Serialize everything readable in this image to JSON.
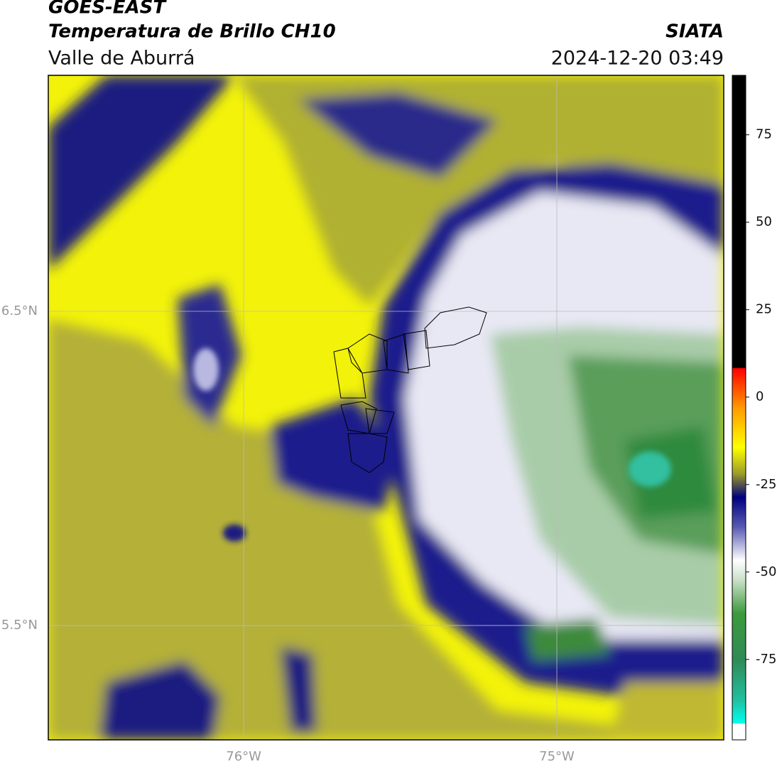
{
  "header": {
    "satellite": "GOES-EAST",
    "product": "Temperatura de Brillo CH10",
    "region": "Valle de Aburrá",
    "source": "SIATA",
    "datetime": "2024-12-20 03:49"
  },
  "map": {
    "xlim": [
      -76.624,
      -74.467
    ],
    "ylim": [
      5.136,
      7.251
    ],
    "xticks": [
      {
        "value": -76,
        "label": "76°W"
      },
      {
        "value": -75,
        "label": "75°W"
      }
    ],
    "yticks": [
      {
        "value": 6.5,
        "label": "6.5°N"
      },
      {
        "value": 5.5,
        "label": "5.5°N"
      }
    ],
    "grid": true
  },
  "colorbar": {
    "lim": [
      -98,
      92
    ],
    "ticks": [
      75,
      50,
      25,
      0,
      -25,
      -50,
      -75
    ]
  }
}
